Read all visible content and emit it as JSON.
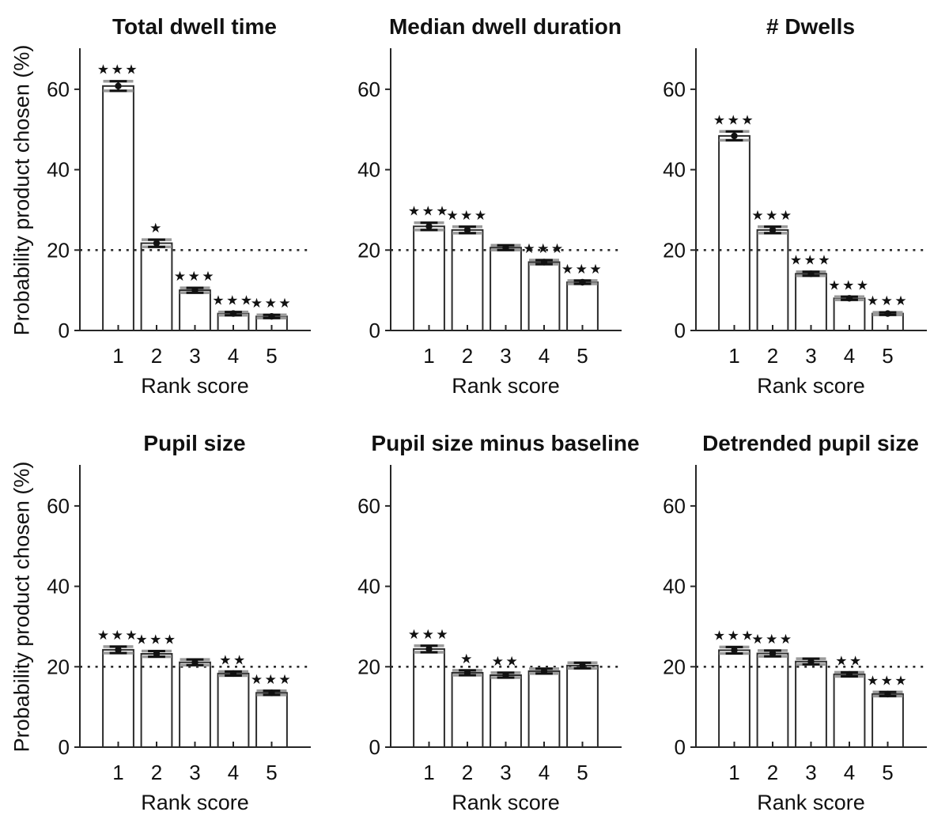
{
  "figure": {
    "ylabel": "Probability product chosen (%)",
    "xlabel": "Rank score",
    "colors": {
      "background": "#ffffff",
      "bar_fill": "#ffffff",
      "bar_edge": "#2b2b2b",
      "axis": "#262626",
      "text": "#111111",
      "marker": "#111111",
      "error_primary": "#111111",
      "error_secondary": "#9a9a9a",
      "ref_line": "#2b2b2b"
    }
  },
  "chart_data": [
    {
      "type": "bar",
      "title": "Total dwell time",
      "categories": [
        "1",
        "2",
        "3",
        "4",
        "5"
      ],
      "values": [
        60.8,
        21.7,
        10.0,
        4.2,
        3.5
      ],
      "errors": [
        1.2,
        0.9,
        0.6,
        0.4,
        0.4
      ],
      "sig": [
        "***",
        "*",
        "***",
        "***",
        "***"
      ],
      "xlabel": "Rank score",
      "ylabel": "Probability product chosen (%)",
      "ylim": [
        0,
        70
      ],
      "yticks": [
        0,
        20,
        40,
        60
      ],
      "ref_line": 20,
      "grid": false,
      "legend": false
    },
    {
      "type": "bar",
      "title": "Median dwell duration",
      "categories": [
        "1",
        "2",
        "3",
        "4",
        "5"
      ],
      "values": [
        25.9,
        25.0,
        20.6,
        17.0,
        12.0
      ],
      "errors": [
        0.9,
        0.8,
        0.6,
        0.5,
        0.4
      ],
      "sig": [
        "***",
        "***",
        "",
        "***",
        "***"
      ],
      "xlabel": "Rank score",
      "ylabel": "Probability product chosen (%)",
      "ylim": [
        0,
        70
      ],
      "yticks": [
        0,
        20,
        40,
        60
      ],
      "ref_line": 20,
      "grid": false,
      "legend": false
    },
    {
      "type": "bar",
      "title": "# Dwells",
      "categories": [
        "1",
        "2",
        "3",
        "4",
        "5"
      ],
      "values": [
        48.4,
        25.0,
        14.1,
        8.0,
        4.2
      ],
      "errors": [
        1.1,
        0.8,
        0.5,
        0.4,
        0.3
      ],
      "sig": [
        "***",
        "***",
        "***",
        "***",
        "***"
      ],
      "xlabel": "Rank score",
      "ylabel": "Probability product chosen (%)",
      "ylim": [
        0,
        70
      ],
      "yticks": [
        0,
        20,
        40,
        60
      ],
      "ref_line": 20,
      "grid": false,
      "legend": false
    },
    {
      "type": "bar",
      "title": "Pupil size",
      "categories": [
        "1",
        "2",
        "3",
        "4",
        "5"
      ],
      "values": [
        24.2,
        23.2,
        21.1,
        18.3,
        13.5
      ],
      "errors": [
        0.8,
        0.7,
        0.7,
        0.5,
        0.5
      ],
      "sig": [
        "***",
        "***",
        "",
        "**",
        "***"
      ],
      "xlabel": "Rank score",
      "ylabel": "Probability product chosen (%)",
      "ylim": [
        0,
        70
      ],
      "yticks": [
        0,
        20,
        40,
        60
      ],
      "ref_line": 20,
      "grid": false,
      "legend": false
    },
    {
      "type": "bar",
      "title": "Pupil size minus baseline",
      "categories": [
        "1",
        "2",
        "3",
        "4",
        "5"
      ],
      "values": [
        24.4,
        18.5,
        17.9,
        18.9,
        20.3
      ],
      "errors": [
        0.8,
        0.6,
        0.6,
        0.6,
        0.7
      ],
      "sig": [
        "***",
        "*",
        "**",
        "",
        ""
      ],
      "xlabel": "Rank score",
      "ylabel": "Probability product chosen (%)",
      "ylim": [
        0,
        70
      ],
      "yticks": [
        0,
        20,
        40,
        60
      ],
      "ref_line": 20,
      "grid": false,
      "legend": false
    },
    {
      "type": "bar",
      "title": "Detrended pupil size",
      "categories": [
        "1",
        "2",
        "3",
        "4",
        "5"
      ],
      "values": [
        24.1,
        23.3,
        21.3,
        18.1,
        13.2
      ],
      "errors": [
        0.8,
        0.7,
        0.7,
        0.5,
        0.5
      ],
      "sig": [
        "***",
        "***",
        "",
        "**",
        "***"
      ],
      "xlabel": "Rank score",
      "ylabel": "Probability product chosen (%)",
      "ylim": [
        0,
        70
      ],
      "yticks": [
        0,
        20,
        40,
        60
      ],
      "ref_line": 20,
      "grid": false,
      "legend": false
    }
  ]
}
